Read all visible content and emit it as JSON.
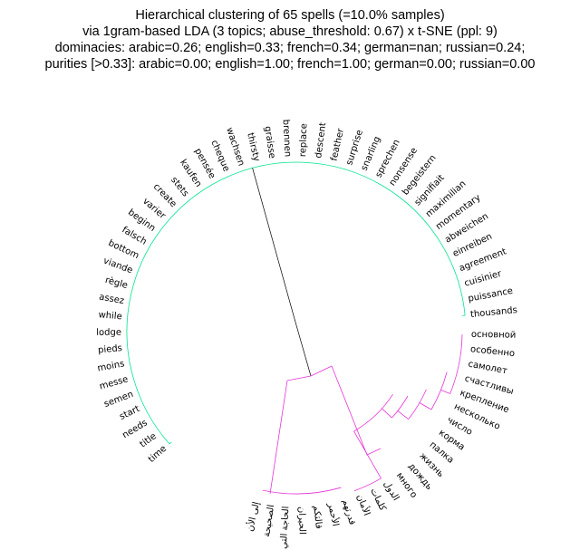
{
  "title_lines": [
    "Hierarchical clustering of 65 spells (=10.0% samples)",
    "via 1gram-based LDA (3 topics; abuse_threshold: 0.67) x t-SNE (ppl: 9)",
    "dominacies: arabic=0.26; english=0.33; french=0.34; german=nan; russian=0.24;",
    "purities [>0.33]: arabic=0.00; english=1.00; french=1.00; german=0.00; russian=0.00"
  ],
  "colors": {
    "green_cluster": "#00e68c",
    "magenta_cluster": "#e633d9",
    "root_link": "#000000"
  },
  "clusters": {
    "green": [
      "thousands",
      "puissance",
      "cuisinier",
      "agreement",
      "einreiben",
      "abweichen",
      "momentary",
      "maximilian",
      "signifiait",
      "begeistern",
      "nonsense",
      "sprechen",
      "snarling",
      "surprise",
      "feather",
      "descent",
      "replace",
      "brennen",
      "graisse",
      "thirsty",
      "wachsen",
      "cheque",
      "pensée",
      "kaufen",
      "stets",
      "create",
      "varier",
      "beginn",
      "falsch",
      "bottom",
      "viande",
      "règle",
      "assez",
      "while",
      "lodge",
      "pieds",
      "moins",
      "messe",
      "semen",
      "start",
      "needs",
      "title",
      "time"
    ],
    "magenta": [
      "إلى الأن",
      "الصحيحة",
      "الحاجة التي",
      "الحيران",
      "قالتكم",
      "الأحمر",
      "قدرتهم",
      "الأمان",
      "كلمات",
      "الدول",
      "много",
      "дождь",
      "жизнь",
      "палка",
      "корма",
      "число",
      "несколько",
      "крепление",
      "счастливы",
      "самолет",
      "особенно",
      "основной"
    ]
  }
}
